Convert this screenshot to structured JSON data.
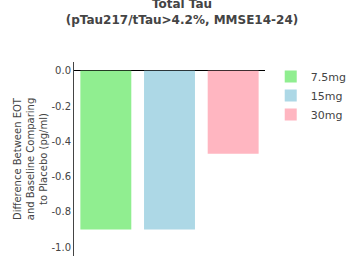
{
  "chart_data": {
    "type": "bar",
    "title": "Total Tau\n(pTau217/tTau>4.2%, MMSE14-24)",
    "ylabel": "Difference Between EOT\nand Baseline Comparing\nto Placebo (pg/ml)",
    "categories": [
      "7.5mg",
      "15mg",
      "30mg"
    ],
    "values": [
      -0.9,
      -0.9,
      -0.47
    ],
    "colors": [
      "#90EE90",
      "#ADD8E6",
      "#FFB6C1"
    ],
    "ylim": [
      -1.05,
      0.05
    ],
    "yticks": [
      {
        "value": 0.0,
        "label": "0.0"
      },
      -0.2,
      -0.4,
      -0.6,
      -0.8,
      {
        "value": -1.0,
        "label": "-1.0"
      }
    ],
    "grid": false,
    "legend": "upper right",
    "tick_labels": "y"
  }
}
